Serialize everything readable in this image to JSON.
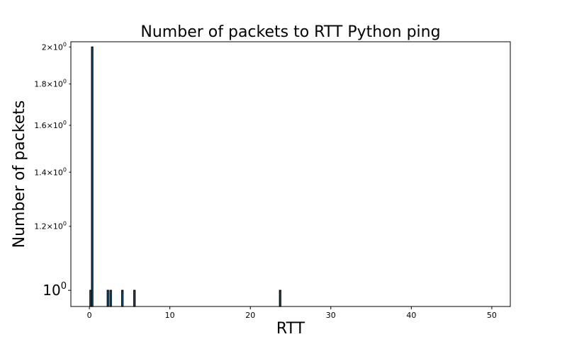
{
  "chart_data": {
    "type": "bar",
    "title": "Number of packets to RTT Python ping",
    "xlabel": "RTT",
    "ylabel": "Number of packets",
    "yscale": "log",
    "xlim": [
      -2.3,
      52.3
    ],
    "ylim": [
      0.955,
      2.03
    ],
    "grid": false,
    "legend": "none",
    "bar_color": "#1f77b4",
    "edge_color": "#000000",
    "bar_width": 0.18,
    "x_ticks": [
      {
        "value": 0,
        "label": "0"
      },
      {
        "value": 10,
        "label": "10"
      },
      {
        "value": 20,
        "label": "20"
      },
      {
        "value": 30,
        "label": "30"
      },
      {
        "value": 40,
        "label": "40"
      },
      {
        "value": 50,
        "label": "50"
      }
    ],
    "y_ticks": [
      {
        "value": 1.0,
        "mantissa": "",
        "exponent": "0",
        "major": true
      },
      {
        "value": 1.2,
        "mantissa": "1.2",
        "exponent": "0",
        "major": false
      },
      {
        "value": 1.4,
        "mantissa": "1.4",
        "exponent": "0",
        "major": false
      },
      {
        "value": 1.6,
        "mantissa": "1.6",
        "exponent": "0",
        "major": false
      },
      {
        "value": 1.8,
        "mantissa": "1.8",
        "exponent": "0",
        "major": false
      },
      {
        "value": 2.0,
        "mantissa": "2",
        "exponent": "0",
        "major": false
      }
    ],
    "bars": [
      {
        "x": 0.15,
        "y": 1
      },
      {
        "x": 0.35,
        "y": 2
      },
      {
        "x": 2.3,
        "y": 1
      },
      {
        "x": 2.65,
        "y": 1
      },
      {
        "x": 4.1,
        "y": 1
      },
      {
        "x": 5.6,
        "y": 1
      },
      {
        "x": 23.7,
        "y": 1
      }
    ]
  }
}
